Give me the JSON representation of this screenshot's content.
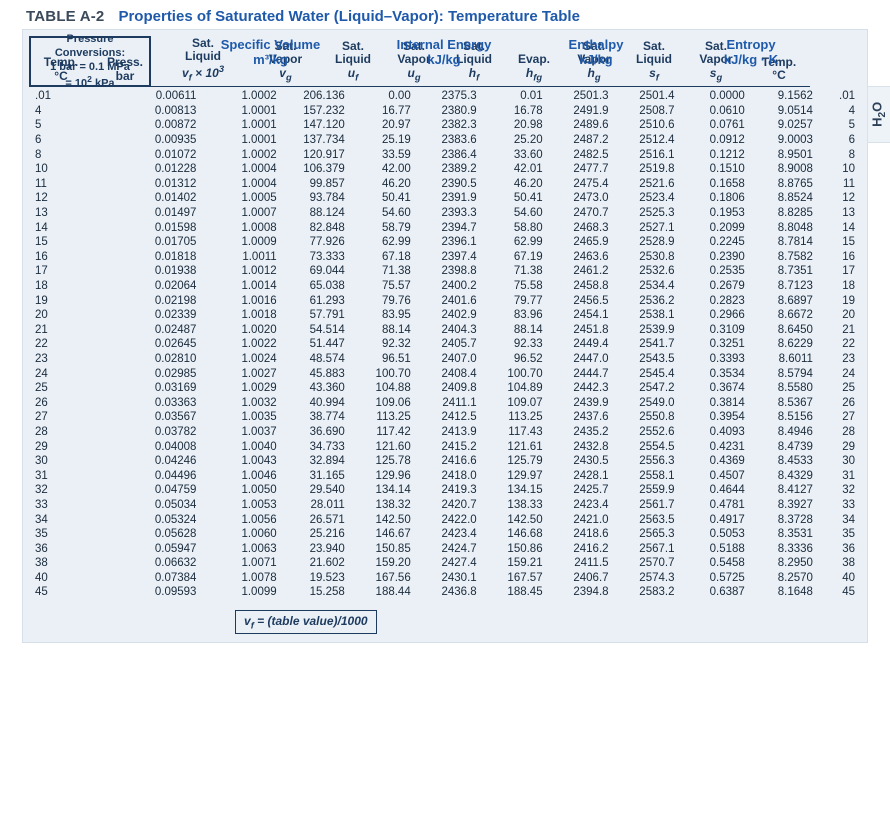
{
  "colors": {
    "panel_bg": "#eaf0f6",
    "panel_border": "#d7e0ea",
    "title_blue": "#1f5aaa",
    "navy": "#1d3a5f",
    "text": "#1a2b3c",
    "page_bg": "#ffffff"
  },
  "side_tab": "H₂O",
  "table_id": "TABLE A-2",
  "table_title": "Properties of Saturated Water (Liquid–Vapor): Temperature Table",
  "conversion_box": {
    "l1": "Pressure Conversions:",
    "l2": "1 bar = 0.1 MPa",
    "l3": "= 10² kPa"
  },
  "group_headers": {
    "sv": {
      "t1": "Specific Volume",
      "t2": "m³/kg"
    },
    "ie": {
      "t1": "Internal Energy",
      "t2": "kJ/kg"
    },
    "h": {
      "t1": "Enthalpy",
      "t2": "kJ/kg"
    },
    "s": {
      "t1": "Entropy",
      "t2": "kJ/kg · K"
    }
  },
  "subheaders": {
    "temp": {
      "t1": "Temp.",
      "t2": "°C"
    },
    "press": {
      "t1": "Press.",
      "t2": "bar"
    },
    "vf": {
      "t1": "Sat.",
      "t2": "Liquid",
      "t3": "𝑣𝒻 × 10³"
    },
    "vg": {
      "t1": "Sat.",
      "t2": "Vapor",
      "t3": "𝑣g"
    },
    "uf": {
      "t1": "Sat.",
      "t2": "Liquid",
      "t3": "𝑢𝒻"
    },
    "ug": {
      "t1": "Sat.",
      "t2": "Vapor",
      "t3": "𝑢g"
    },
    "hf": {
      "t1": "Sat.",
      "t2": "Liquid",
      "t3": "h𝒻"
    },
    "hfg": {
      "t1": "",
      "t2": "Evap.",
      "t3": "h𝒻g"
    },
    "hg": {
      "t1": "Sat.",
      "t2": "Vapor",
      "t3": "hg"
    },
    "sf": {
      "t1": "Sat.",
      "t2": "Liquid",
      "t3": "s𝒻"
    },
    "sg": {
      "t1": "Sat.",
      "t2": "Vapor",
      "t3": "sg"
    },
    "temp2": {
      "t1": "Temp.",
      "t2": "°C"
    }
  },
  "columns_layout": [
    128,
    92,
    73,
    62,
    60,
    60,
    60,
    60,
    60,
    64,
    62,
    40
  ],
  "group_breaks": [
    5,
    10,
    15,
    20,
    25,
    30,
    35
  ],
  "rows": [
    [
      ".01",
      "0.00611",
      "1.0002",
      "206.136",
      "0.00",
      "2375.3",
      "0.01",
      "2501.3",
      "2501.4",
      "0.0000",
      "9.1562",
      ".01"
    ],
    [
      "4",
      "0.00813",
      "1.0001",
      "157.232",
      "16.77",
      "2380.9",
      "16.78",
      "2491.9",
      "2508.7",
      "0.0610",
      "9.0514",
      "4"
    ],
    [
      "5",
      "0.00872",
      "1.0001",
      "147.120",
      "20.97",
      "2382.3",
      "20.98",
      "2489.6",
      "2510.6",
      "0.0761",
      "9.0257",
      "5"
    ],
    [
      "6",
      "0.00935",
      "1.0001",
      "137.734",
      "25.19",
      "2383.6",
      "25.20",
      "2487.2",
      "2512.4",
      "0.0912",
      "9.0003",
      "6"
    ],
    [
      "8",
      "0.01072",
      "1.0002",
      "120.917",
      "33.59",
      "2386.4",
      "33.60",
      "2482.5",
      "2516.1",
      "0.1212",
      "8.9501",
      "8"
    ],
    [
      "10",
      "0.01228",
      "1.0004",
      "106.379",
      "42.00",
      "2389.2",
      "42.01",
      "2477.7",
      "2519.8",
      "0.1510",
      "8.9008",
      "10"
    ],
    [
      "11",
      "0.01312",
      "1.0004",
      "99.857",
      "46.20",
      "2390.5",
      "46.20",
      "2475.4",
      "2521.6",
      "0.1658",
      "8.8765",
      "11"
    ],
    [
      "12",
      "0.01402",
      "1.0005",
      "93.784",
      "50.41",
      "2391.9",
      "50.41",
      "2473.0",
      "2523.4",
      "0.1806",
      "8.8524",
      "12"
    ],
    [
      "13",
      "0.01497",
      "1.0007",
      "88.124",
      "54.60",
      "2393.3",
      "54.60",
      "2470.7",
      "2525.3",
      "0.1953",
      "8.8285",
      "13"
    ],
    [
      "14",
      "0.01598",
      "1.0008",
      "82.848",
      "58.79",
      "2394.7",
      "58.80",
      "2468.3",
      "2527.1",
      "0.2099",
      "8.8048",
      "14"
    ],
    [
      "15",
      "0.01705",
      "1.0009",
      "77.926",
      "62.99",
      "2396.1",
      "62.99",
      "2465.9",
      "2528.9",
      "0.2245",
      "8.7814",
      "15"
    ],
    [
      "16",
      "0.01818",
      "1.0011",
      "73.333",
      "67.18",
      "2397.4",
      "67.19",
      "2463.6",
      "2530.8",
      "0.2390",
      "8.7582",
      "16"
    ],
    [
      "17",
      "0.01938",
      "1.0012",
      "69.044",
      "71.38",
      "2398.8",
      "71.38",
      "2461.2",
      "2532.6",
      "0.2535",
      "8.7351",
      "17"
    ],
    [
      "18",
      "0.02064",
      "1.0014",
      "65.038",
      "75.57",
      "2400.2",
      "75.58",
      "2458.8",
      "2534.4",
      "0.2679",
      "8.7123",
      "18"
    ],
    [
      "19",
      "0.02198",
      "1.0016",
      "61.293",
      "79.76",
      "2401.6",
      "79.77",
      "2456.5",
      "2536.2",
      "0.2823",
      "8.6897",
      "19"
    ],
    [
      "20",
      "0.02339",
      "1.0018",
      "57.791",
      "83.95",
      "2402.9",
      "83.96",
      "2454.1",
      "2538.1",
      "0.2966",
      "8.6672",
      "20"
    ],
    [
      "21",
      "0.02487",
      "1.0020",
      "54.514",
      "88.14",
      "2404.3",
      "88.14",
      "2451.8",
      "2539.9",
      "0.3109",
      "8.6450",
      "21"
    ],
    [
      "22",
      "0.02645",
      "1.0022",
      "51.447",
      "92.32",
      "2405.7",
      "92.33",
      "2449.4",
      "2541.7",
      "0.3251",
      "8.6229",
      "22"
    ],
    [
      "23",
      "0.02810",
      "1.0024",
      "48.574",
      "96.51",
      "2407.0",
      "96.52",
      "2447.0",
      "2543.5",
      "0.3393",
      "8.6011",
      "23"
    ],
    [
      "24",
      "0.02985",
      "1.0027",
      "45.883",
      "100.70",
      "2408.4",
      "100.70",
      "2444.7",
      "2545.4",
      "0.3534",
      "8.5794",
      "24"
    ],
    [
      "25",
      "0.03169",
      "1.0029",
      "43.360",
      "104.88",
      "2409.8",
      "104.89",
      "2442.3",
      "2547.2",
      "0.3674",
      "8.5580",
      "25"
    ],
    [
      "26",
      "0.03363",
      "1.0032",
      "40.994",
      "109.06",
      "2411.1",
      "109.07",
      "2439.9",
      "2549.0",
      "0.3814",
      "8.5367",
      "26"
    ],
    [
      "27",
      "0.03567",
      "1.0035",
      "38.774",
      "113.25",
      "2412.5",
      "113.25",
      "2437.6",
      "2550.8",
      "0.3954",
      "8.5156",
      "27"
    ],
    [
      "28",
      "0.03782",
      "1.0037",
      "36.690",
      "117.42",
      "2413.9",
      "117.43",
      "2435.2",
      "2552.6",
      "0.4093",
      "8.4946",
      "28"
    ],
    [
      "29",
      "0.04008",
      "1.0040",
      "34.733",
      "121.60",
      "2415.2",
      "121.61",
      "2432.8",
      "2554.5",
      "0.4231",
      "8.4739",
      "29"
    ],
    [
      "30",
      "0.04246",
      "1.0043",
      "32.894",
      "125.78",
      "2416.6",
      "125.79",
      "2430.5",
      "2556.3",
      "0.4369",
      "8.4533",
      "30"
    ],
    [
      "31",
      "0.04496",
      "1.0046",
      "31.165",
      "129.96",
      "2418.0",
      "129.97",
      "2428.1",
      "2558.1",
      "0.4507",
      "8.4329",
      "31"
    ],
    [
      "32",
      "0.04759",
      "1.0050",
      "29.540",
      "134.14",
      "2419.3",
      "134.15",
      "2425.7",
      "2559.9",
      "0.4644",
      "8.4127",
      "32"
    ],
    [
      "33",
      "0.05034",
      "1.0053",
      "28.011",
      "138.32",
      "2420.7",
      "138.33",
      "2423.4",
      "2561.7",
      "0.4781",
      "8.3927",
      "33"
    ],
    [
      "34",
      "0.05324",
      "1.0056",
      "26.571",
      "142.50",
      "2422.0",
      "142.50",
      "2421.0",
      "2563.5",
      "0.4917",
      "8.3728",
      "34"
    ],
    [
      "35",
      "0.05628",
      "1.0060",
      "25.216",
      "146.67",
      "2423.4",
      "146.68",
      "2418.6",
      "2565.3",
      "0.5053",
      "8.3531",
      "35"
    ],
    [
      "36",
      "0.05947",
      "1.0063",
      "23.940",
      "150.85",
      "2424.7",
      "150.86",
      "2416.2",
      "2567.1",
      "0.5188",
      "8.3336",
      "36"
    ],
    [
      "38",
      "0.06632",
      "1.0071",
      "21.602",
      "159.20",
      "2427.4",
      "159.21",
      "2411.5",
      "2570.7",
      "0.5458",
      "8.2950",
      "38"
    ],
    [
      "40",
      "0.07384",
      "1.0078",
      "19.523",
      "167.56",
      "2430.1",
      "167.57",
      "2406.7",
      "2574.3",
      "0.5725",
      "8.2570",
      "40"
    ],
    [
      "45",
      "0.09593",
      "1.0099",
      "15.258",
      "188.44",
      "2436.8",
      "188.45",
      "2394.8",
      "2583.2",
      "0.6387",
      "8.1648",
      "45"
    ]
  ],
  "footnote": "𝑣𝒻 = (table value)/1000"
}
